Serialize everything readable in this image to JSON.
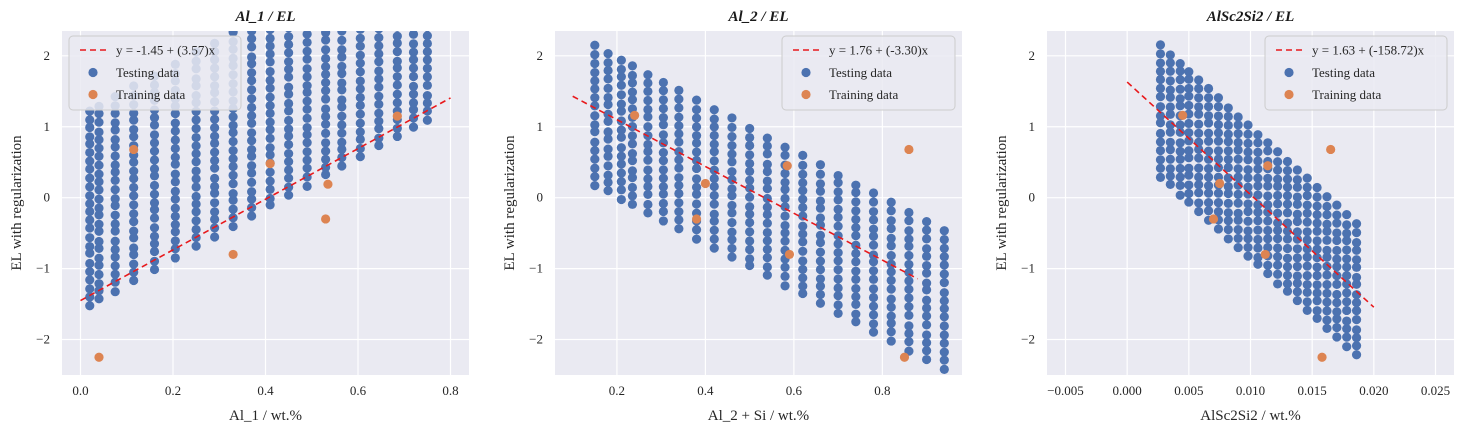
{
  "colors": {
    "background": "#EAEAF2",
    "grid": "#FFFFFF",
    "testing": "#4C72B0",
    "training": "#DD8452",
    "fit": "#E8191C"
  },
  "chart_data": [
    {
      "type": "scatter",
      "title": "Al_1 / EL",
      "xlabel": "Al_1 / wt.%",
      "ylabel": "EL  with regularization",
      "xlim": [
        -0.04,
        0.84
      ],
      "ylim": [
        -2.5,
        2.35
      ],
      "xticks": [
        "0.0",
        "0.2",
        "0.4",
        "0.6",
        "0.8"
      ],
      "yticks": [
        "−2",
        "−1",
        "0",
        "1",
        "2"
      ],
      "legend_position": "top-left",
      "fit": {
        "label": "y = -1.45 + (3.57)x",
        "intercept": -1.45,
        "slope": 3.57,
        "x_range": [
          0.0,
          0.8
        ]
      },
      "series": [
        {
          "name": "Testing data",
          "pattern": "grid",
          "band_offset": 0.0,
          "band_slope": 3.57,
          "band_lo": -1.58,
          "band_hi": 1.15,
          "x_values": [
            0.02,
            0.04,
            0.075,
            0.115,
            0.16,
            0.205,
            0.25,
            0.29,
            0.33,
            0.37,
            0.41,
            0.45,
            0.49,
            0.53,
            0.565,
            0.605,
            0.645,
            0.685,
            0.72,
            0.75
          ]
        },
        {
          "name": "Training data",
          "points": [
            [
              0.04,
              -2.25
            ],
            [
              0.115,
              0.68
            ],
            [
              0.33,
              -0.8
            ],
            [
              0.41,
              0.48
            ],
            [
              0.535,
              0.19
            ],
            [
              0.53,
              -0.3
            ],
            [
              0.685,
              1.15
            ]
          ]
        }
      ]
    },
    {
      "type": "scatter",
      "title": "Al_2 / EL",
      "xlabel": "Al_2 + Si / wt.%",
      "ylabel": "EL  with regularization",
      "xlim": [
        0.06,
        0.98
      ],
      "ylim": [
        -2.5,
        2.35
      ],
      "xticks": [
        "0.2",
        "0.4",
        "0.6",
        "0.8"
      ],
      "yticks": [
        "−2",
        "−1",
        "0",
        "1",
        "2"
      ],
      "legend_position": "top-right",
      "fit": {
        "label": "y = 1.76 + (-3.30)x",
        "intercept": 1.76,
        "slope": -3.3,
        "x_range": [
          0.1,
          0.88
        ]
      },
      "series": [
        {
          "name": "Testing data",
          "pattern": "grid",
          "band_offset": 1.63,
          "band_slope": -3.3,
          "band_lo": -0.95,
          "band_hi": 1.0,
          "x_values": [
            0.15,
            0.18,
            0.21,
            0.235,
            0.27,
            0.305,
            0.34,
            0.38,
            0.42,
            0.46,
            0.5,
            0.54,
            0.58,
            0.62,
            0.66,
            0.7,
            0.74,
            0.78,
            0.82,
            0.86,
            0.9,
            0.94
          ]
        },
        {
          "name": "Training data",
          "points": [
            [
              0.24,
              1.16
            ],
            [
              0.38,
              -0.3
            ],
            [
              0.4,
              0.2
            ],
            [
              0.585,
              0.45
            ],
            [
              0.59,
              -0.8
            ],
            [
              0.86,
              0.68
            ],
            [
              0.85,
              -2.25
            ]
          ]
        }
      ]
    },
    {
      "type": "scatter",
      "title": "AlSc2Si2 / EL",
      "xlabel": "AlSc2Si2 / wt.%",
      "ylabel": "EL  with regularization",
      "xlim": [
        -0.0065,
        0.0265
      ],
      "ylim": [
        -2.5,
        2.35
      ],
      "xticks": [
        "−0.005",
        "0.000",
        "0.005",
        "0.010",
        "0.015",
        "0.020",
        "0.025"
      ],
      "yticks": [
        "−2",
        "−1",
        "0",
        "1",
        "2"
      ],
      "legend_position": "top-right",
      "fit": {
        "label": "y = 1.63 + (-158.72)x",
        "intercept": 1.63,
        "slope": -158.72,
        "x_range": [
          0.0,
          0.02
        ]
      },
      "series": [
        {
          "name": "Testing data",
          "pattern": "grid",
          "band_offset": 1.63,
          "band_slope": -158.72,
          "band_lo": -0.9,
          "band_hi": 0.95,
          "x_values": [
            0.0027,
            0.0035,
            0.0043,
            0.005,
            0.0058,
            0.0066,
            0.0074,
            0.0082,
            0.009,
            0.0098,
            0.0106,
            0.0114,
            0.0122,
            0.013,
            0.0138,
            0.0146,
            0.0154,
            0.0162,
            0.017,
            0.0178,
            0.0186
          ]
        },
        {
          "name": "Training data",
          "points": [
            [
              0.0045,
              1.16
            ],
            [
              0.0075,
              0.2
            ],
            [
              0.007,
              -0.3
            ],
            [
              0.0112,
              -0.8
            ],
            [
              0.0114,
              0.45
            ],
            [
              0.0165,
              0.68
            ],
            [
              0.0158,
              -2.25
            ]
          ]
        }
      ]
    }
  ]
}
